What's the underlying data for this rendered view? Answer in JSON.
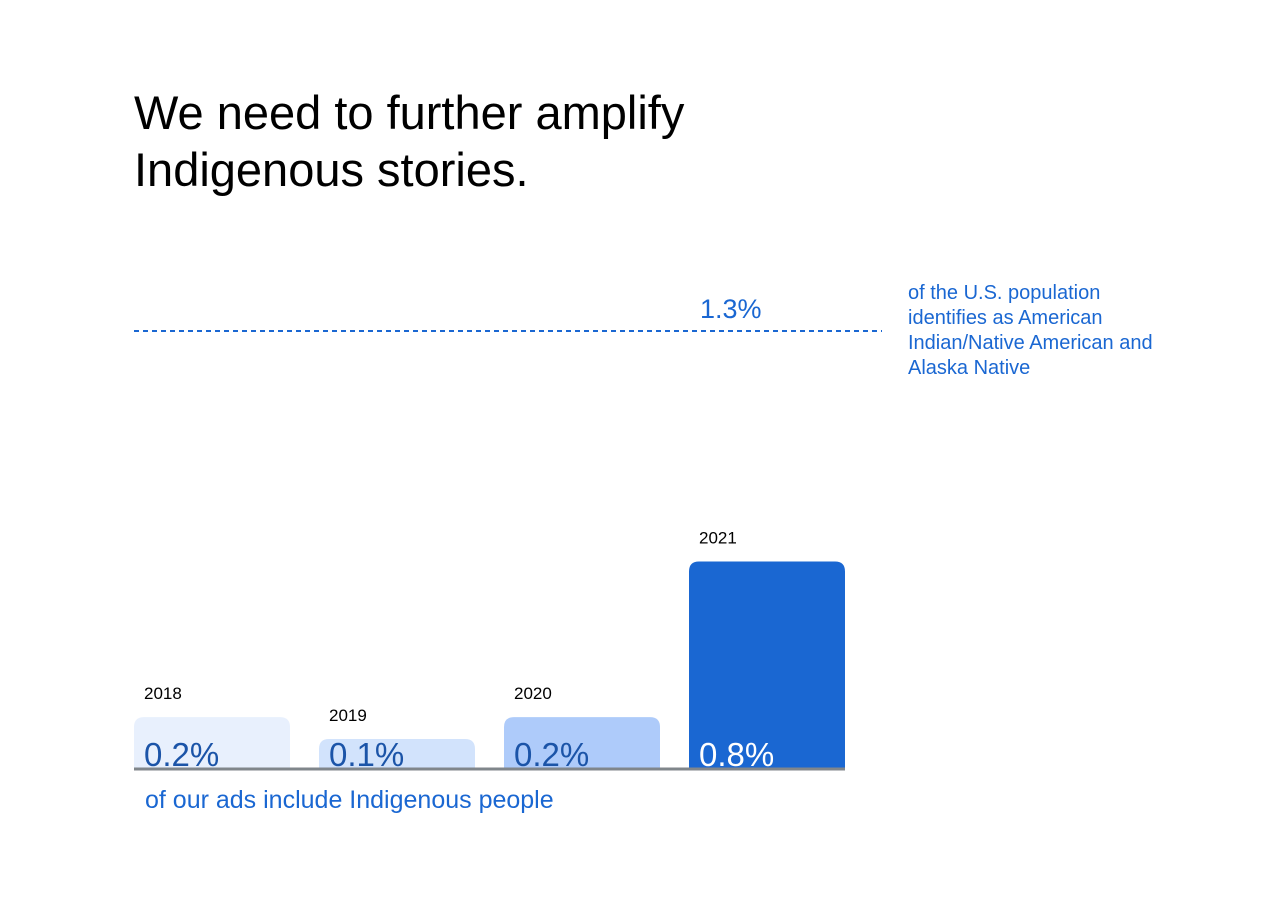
{
  "title": "We need to further amplify Indigenous stories.",
  "chart_data": {
    "type": "bar",
    "categories": [
      "2018",
      "2019",
      "2020",
      "2021"
    ],
    "values": [
      0.2,
      0.1,
      0.2,
      0.8
    ],
    "value_labels": [
      "0.2%",
      "0.1%",
      "0.2%",
      "0.8%"
    ],
    "bar_colors": [
      "#e8f0fd",
      "#d2e3fc",
      "#aecbfa",
      "#1a67d2"
    ],
    "value_label_colors": [
      "#1b54a8",
      "#1b54a8",
      "#1b54a8",
      "#ffffff"
    ],
    "ylim": [
      0,
      1.3
    ],
    "reference_line": {
      "value": 1.3,
      "label": "1.3%",
      "note": "of the U.S. population identifies as American Indian/Native American and Alaska Native",
      "color": "#1a67d2"
    },
    "caption": "of our ads include Indigenous people",
    "baseline_color": "#80868b"
  }
}
